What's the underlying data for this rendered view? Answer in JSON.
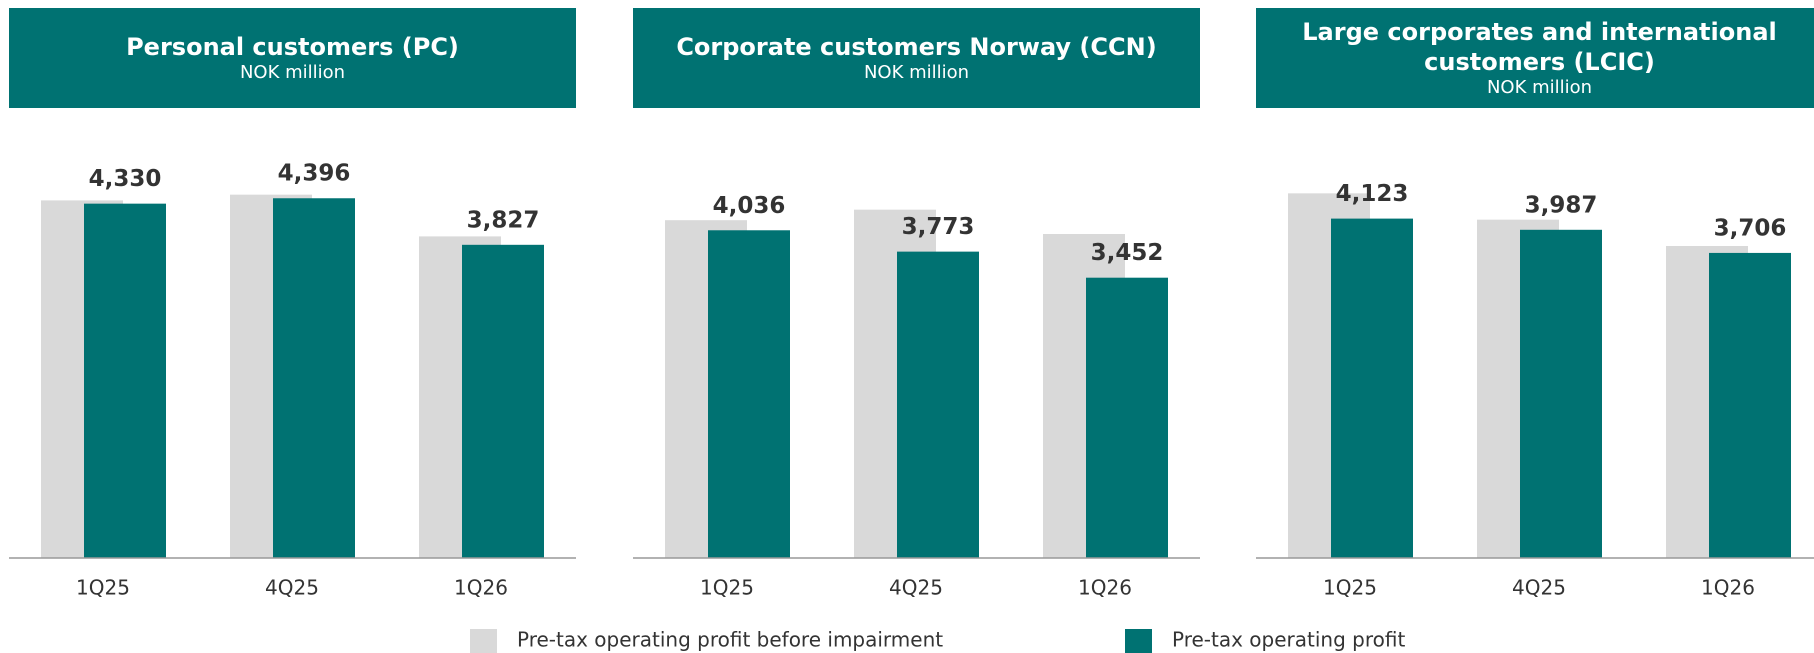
{
  "chart_data": [
    {
      "type": "bar",
      "title": "Personal customers (PC)",
      "subtitle": "NOK million",
      "categories": [
        "1Q25",
        "4Q25",
        "1Q26"
      ],
      "ylim": [
        0,
        5120
      ],
      "series": [
        {
          "name": "Pre-tax operating profit before impairment",
          "color": "#d9d9d9",
          "values": [
            4370,
            4440,
            3930
          ]
        },
        {
          "name": "Pre-tax operating profit",
          "color": "#007272",
          "values": [
            4330,
            4396,
            3827
          ],
          "value_labels": [
            "4,330",
            "4,396",
            "3,827"
          ]
        }
      ]
    },
    {
      "type": "bar",
      "title": "Corporate customers Norway (CCN)",
      "subtitle": "NOK million",
      "categories": [
        "1Q25",
        "4Q25",
        "1Q26"
      ],
      "ylim": [
        0,
        5160
      ],
      "series": [
        {
          "name": "Pre-tax operating profit before impairment",
          "color": "#d9d9d9",
          "values": [
            4160,
            4290,
            3990
          ]
        },
        {
          "name": "Pre-tax operating profit",
          "color": "#007272",
          "values": [
            4036,
            3773,
            3452
          ],
          "value_labels": [
            "4,036",
            "3,773",
            "3,452"
          ]
        }
      ]
    },
    {
      "type": "bar",
      "title": "Large corporates and international customers (LCIC)",
      "subtitle": "NOK million",
      "categories": [
        "1Q25",
        "4Q25",
        "1Q26"
      ],
      "ylim": [
        0,
        5090
      ],
      "series": [
        {
          "name": "Pre-tax operating profit before impairment",
          "color": "#d9d9d9",
          "values": [
            4430,
            4110,
            3790
          ]
        },
        {
          "name": "Pre-tax operating profit",
          "color": "#007272",
          "values": [
            4123,
            3987,
            3706
          ],
          "value_labels": [
            "4,123",
            "3,987",
            "3,706"
          ]
        }
      ]
    }
  ]
}
